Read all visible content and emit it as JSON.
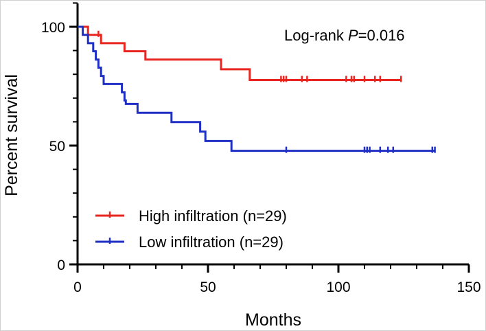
{
  "chart_data": {
    "type": "line",
    "subtype": "kaplan-meier",
    "xlabel": "Months",
    "ylabel": "Percent survival",
    "xlim": [
      0,
      150
    ],
    "ylim": [
      0,
      100
    ],
    "xticks": [
      0,
      50,
      100,
      150
    ],
    "yticks": [
      0,
      50,
      100
    ],
    "grid": false,
    "legend_position": "bottom-left",
    "annotation": {
      "prefix": "Log-rank ",
      "italic": "P",
      "suffix": "=0.016"
    },
    "series": [
      {
        "name": "High infiltration (n=29)",
        "color": "#e8251f",
        "steps": [
          [
            0,
            100
          ],
          [
            4,
            100
          ],
          [
            4,
            96.6
          ],
          [
            9,
            96.6
          ],
          [
            9,
            93.1
          ],
          [
            18,
            93.1
          ],
          [
            18,
            89.7
          ],
          [
            26,
            89.7
          ],
          [
            26,
            86.2
          ],
          [
            55,
            86.2
          ],
          [
            55,
            82.1
          ],
          [
            66,
            82.1
          ],
          [
            66,
            77.6
          ],
          [
            124,
            77.6
          ]
        ],
        "censored": [
          [
            8,
            96.6
          ],
          [
            78,
            77.6
          ],
          [
            79,
            77.6
          ],
          [
            80,
            77.6
          ],
          [
            86,
            77.6
          ],
          [
            88,
            77.6
          ],
          [
            103,
            77.6
          ],
          [
            105,
            77.6
          ],
          [
            106,
            77.6
          ],
          [
            110,
            77.6
          ],
          [
            114,
            77.6
          ],
          [
            116,
            77.6
          ],
          [
            124,
            77.6
          ]
        ]
      },
      {
        "name": "Low infiltration (n=29)",
        "color": "#1f2fc4",
        "steps": [
          [
            0,
            100
          ],
          [
            2,
            100
          ],
          [
            2,
            96.6
          ],
          [
            4,
            96.6
          ],
          [
            4,
            93.1
          ],
          [
            6,
            93.1
          ],
          [
            6,
            89.7
          ],
          [
            7,
            89.7
          ],
          [
            7,
            86.2
          ],
          [
            8,
            86.2
          ],
          [
            8,
            82.8
          ],
          [
            9,
            82.8
          ],
          [
            9,
            79.3
          ],
          [
            10,
            79.3
          ],
          [
            10,
            75.9
          ],
          [
            17,
            75.9
          ],
          [
            17,
            72.4
          ],
          [
            18,
            72.4
          ],
          [
            18,
            69
          ],
          [
            18.5,
            69
          ],
          [
            18.5,
            67.5
          ],
          [
            23,
            67.5
          ],
          [
            23,
            63.8
          ],
          [
            36,
            63.8
          ],
          [
            36,
            59.9
          ],
          [
            47,
            59.9
          ],
          [
            47,
            55.9
          ],
          [
            49,
            55.9
          ],
          [
            49,
            51.9
          ],
          [
            59,
            51.9
          ],
          [
            59,
            47.8
          ],
          [
            137,
            47.8
          ]
        ],
        "censored": [
          [
            80,
            47.8
          ],
          [
            110,
            47.8
          ],
          [
            111,
            47.8
          ],
          [
            112,
            47.8
          ],
          [
            116,
            47.8
          ],
          [
            119,
            47.8
          ],
          [
            121,
            47.8
          ],
          [
            136,
            47.8
          ],
          [
            137,
            47.8
          ]
        ]
      }
    ]
  }
}
